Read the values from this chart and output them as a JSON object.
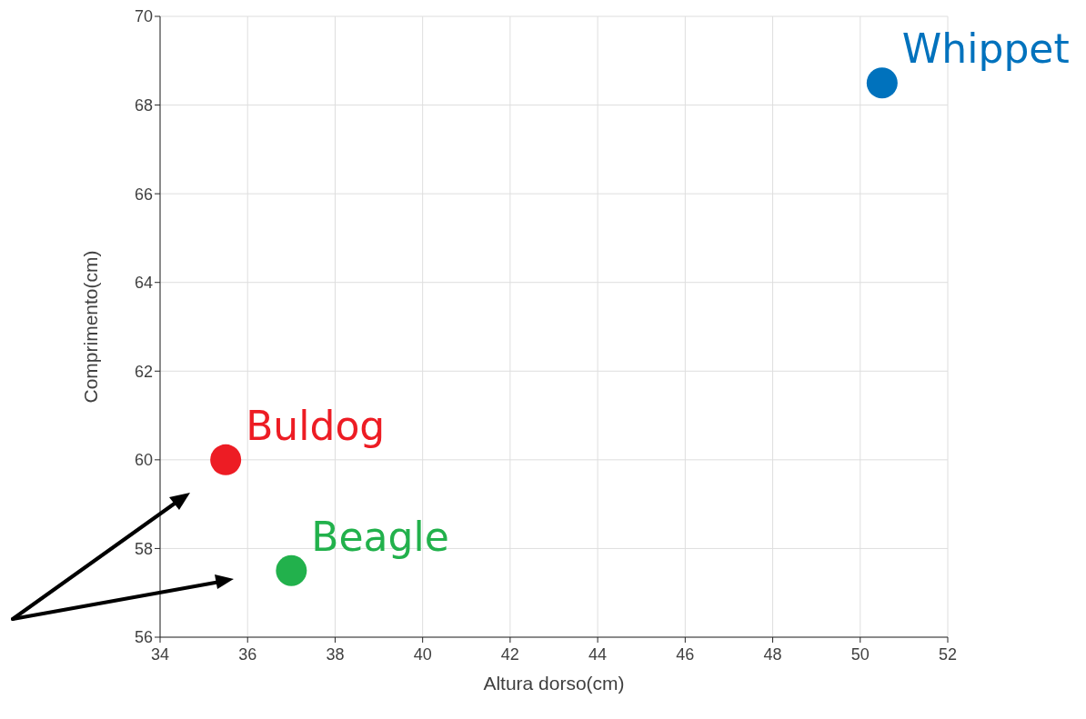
{
  "chart_data": {
    "type": "scatter",
    "xlabel": "Altura dorso(cm)",
    "ylabel": "Comprimento(cm)",
    "xlim": [
      34,
      52
    ],
    "xticks": [
      34,
      36,
      38,
      40,
      42,
      44,
      46,
      48,
      50,
      52
    ],
    "ylim": [
      56,
      70
    ],
    "yticks": [
      56,
      58,
      60,
      62,
      64,
      66,
      68,
      70
    ],
    "grid": true,
    "marker": "circle",
    "series": [
      {
        "name": "Whippet",
        "color": "#0072bd",
        "x": [
          50.5
        ],
        "values": [
          68.5
        ]
      },
      {
        "name": "Buldog",
        "color": "#ed1c24",
        "x": [
          35.5
        ],
        "values": [
          60
        ]
      },
      {
        "name": "Beagle",
        "color": "#22b14c",
        "x": [
          37
        ],
        "values": [
          57.5
        ]
      }
    ]
  }
}
